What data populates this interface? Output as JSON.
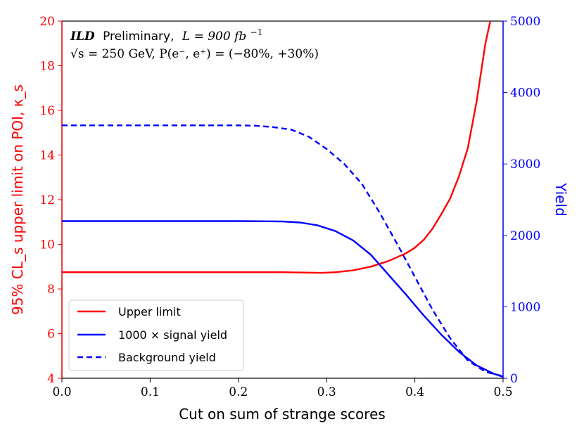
{
  "chart_data": {
    "type": "line",
    "x_axis": {
      "label": "Cut on sum of strange scores",
      "range": [
        0.0,
        0.5
      ],
      "ticks": [
        "0.0",
        "0.1",
        "0.2",
        "0.3",
        "0.4",
        "0.5"
      ],
      "tick_values": [
        0.0,
        0.1,
        0.2,
        0.3,
        0.4,
        0.5
      ]
    },
    "y_left": {
      "label": "95% CL_s upper limit on POI, κ_s",
      "range": [
        4,
        20
      ],
      "ticks": [
        "4",
        "6",
        "8",
        "10",
        "12",
        "14",
        "16",
        "18",
        "20"
      ],
      "tick_values": [
        4,
        6,
        8,
        10,
        12,
        14,
        16,
        18,
        20
      ],
      "color": "#ff0000"
    },
    "y_right": {
      "label": "Yield",
      "range": [
        0,
        5000
      ],
      "ticks": [
        "0",
        "1000",
        "2000",
        "3000",
        "4000",
        "5000"
      ],
      "tick_values": [
        0,
        1000,
        2000,
        3000,
        4000,
        5000
      ],
      "color": "#0000ff"
    },
    "annotation": {
      "line1_bold": "ILD",
      "line1_rest": "Preliminary,",
      "line1_lumi": "L = 900 fb",
      "line1_sup": "−1",
      "line2": "√s = 250 GeV, P(e⁻, e⁺) = (−80%, +30%)"
    },
    "series": [
      {
        "name": "Upper limit",
        "axis": "left",
        "color": "#ff0000",
        "dash": "solid",
        "x": [
          0.0,
          0.05,
          0.1,
          0.15,
          0.2,
          0.25,
          0.28,
          0.295,
          0.31,
          0.33,
          0.35,
          0.37,
          0.39,
          0.4,
          0.41,
          0.42,
          0.43,
          0.44,
          0.45,
          0.46,
          0.47,
          0.48,
          0.4855
        ],
        "values": [
          8.75,
          8.75,
          8.75,
          8.75,
          8.75,
          8.75,
          8.73,
          8.72,
          8.75,
          8.83,
          9.0,
          9.25,
          9.6,
          9.85,
          10.2,
          10.7,
          11.35,
          12.05,
          13.05,
          14.3,
          16.4,
          19.0,
          20.0
        ]
      },
      {
        "name": "1000 × signal yield",
        "axis": "right",
        "color": "#0000ff",
        "dash": "solid",
        "x": [
          0.0,
          0.1,
          0.2,
          0.25,
          0.27,
          0.29,
          0.31,
          0.33,
          0.35,
          0.37,
          0.39,
          0.41,
          0.43,
          0.45,
          0.47,
          0.49,
          0.5
        ],
        "values": [
          2200,
          2200,
          2200,
          2195,
          2180,
          2140,
          2060,
          1930,
          1730,
          1450,
          1170,
          880,
          610,
          370,
          180,
          60,
          20
        ]
      },
      {
        "name": "Background yield",
        "axis": "right",
        "color": "#0000ff",
        "dash": "dashed",
        "x": [
          0.0,
          0.1,
          0.2,
          0.22,
          0.24,
          0.26,
          0.28,
          0.3,
          0.32,
          0.34,
          0.36,
          0.38,
          0.4,
          0.42,
          0.44,
          0.46,
          0.48,
          0.5
        ],
        "values": [
          3540,
          3540,
          3540,
          3535,
          3515,
          3480,
          3380,
          3210,
          3000,
          2720,
          2320,
          1880,
          1420,
          960,
          560,
          250,
          90,
          30
        ]
      }
    ],
    "legend": {
      "position": "lower-left",
      "entries": [
        "Upper limit",
        "1000 × signal yield",
        "Background yield"
      ]
    }
  }
}
